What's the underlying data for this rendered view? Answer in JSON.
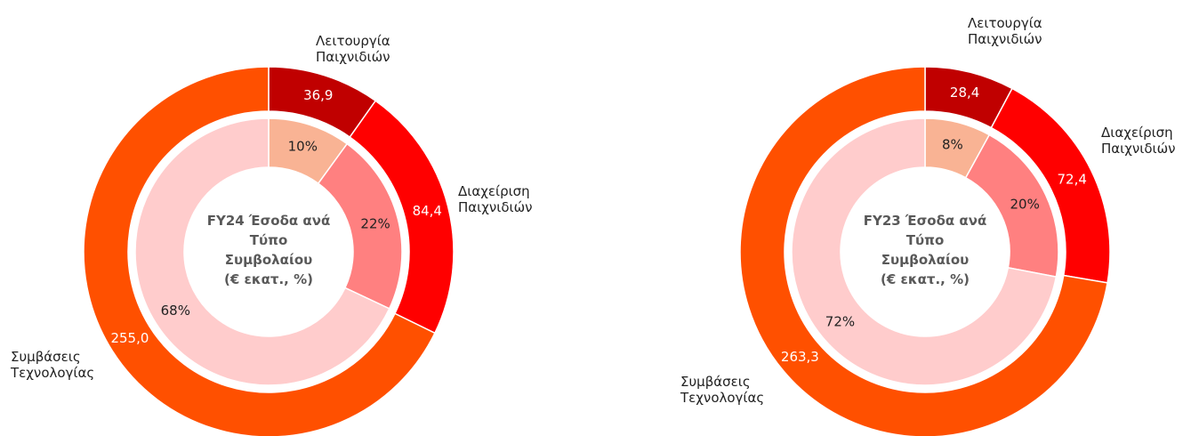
{
  "chart_data": [
    {
      "type": "donut",
      "title": [
        "FY24 Έσοδα ανά",
        "Τύπο",
        "Συμβολαίου",
        "(€ εκατ., %)"
      ],
      "categories": [
        "Λειτουργία Παιχνιδιών",
        "Διαχείριση Παιχνιδιών",
        "Συμβάσεις Τεχνολογίας"
      ],
      "values": [
        36.9,
        84.4,
        255.0
      ],
      "value_labels": [
        "36,9",
        "84,4",
        "255,0"
      ],
      "colors": [
        "#c00000",
        "#ff0000",
        "#ff5000"
      ],
      "inner_values": [
        10,
        22,
        68
      ],
      "inner_value_labels": [
        "10%",
        "22%",
        "68%"
      ],
      "inner_colors": [
        "#f9b394",
        "#ff8080",
        "#ffcccc"
      ]
    },
    {
      "type": "donut",
      "title": [
        "FY23 Έσοδα ανά",
        "Τύπο",
        "Συμβολαίου",
        "(€ εκατ., %)"
      ],
      "categories": [
        "Λειτουργία Παιχνιδιών",
        "Διαχείριση Παιχνιδιών",
        "Συμβάσεις Τεχνολογίας"
      ],
      "values": [
        28.4,
        72.4,
        263.3
      ],
      "value_labels": [
        "28,4",
        "72,4",
        "263,3"
      ],
      "colors": [
        "#c00000",
        "#ff0000",
        "#ff5000"
      ],
      "inner_values": [
        8,
        20,
        72
      ],
      "inner_value_labels": [
        "8%",
        "20%",
        "72%"
      ],
      "inner_colors": [
        "#f9b394",
        "#ff8080",
        "#ffcccc"
      ]
    }
  ]
}
